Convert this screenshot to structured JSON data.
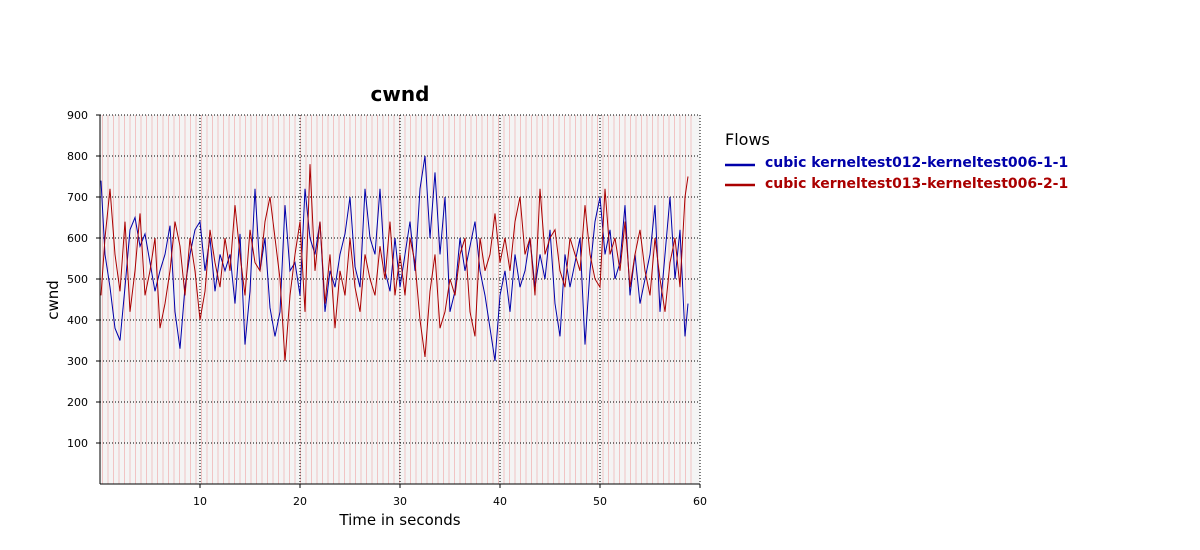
{
  "chart_data": {
    "type": "line",
    "title": "cwnd",
    "xlabel": "Time in seconds",
    "ylabel": "cwnd",
    "xlim": [
      0,
      60
    ],
    "ylim": [
      0,
      900
    ],
    "xticks": [
      10,
      20,
      30,
      40,
      50,
      60
    ],
    "yticks": [
      100,
      200,
      300,
      400,
      500,
      600,
      700,
      800,
      900
    ],
    "grid": true,
    "legend": {
      "title": "Flows",
      "position": "right"
    },
    "series": [
      {
        "name": "cubic kerneltest012-kerneltest006-1-1",
        "color": "#0000aa",
        "x": [
          0.1,
          0.5,
          1,
          1.5,
          2,
          2.5,
          3,
          3.5,
          4,
          4.5,
          5,
          5.5,
          6,
          6.5,
          7,
          7.5,
          8,
          8.5,
          9,
          9.5,
          10,
          10.5,
          11,
          11.5,
          12,
          12.5,
          13,
          13.5,
          14,
          14.5,
          15,
          15.5,
          16,
          16.5,
          17,
          17.5,
          18,
          18.5,
          19,
          19.5,
          20,
          20.5,
          21,
          21.5,
          22,
          22.5,
          23,
          23.5,
          24,
          24.5,
          25,
          25.5,
          26,
          26.5,
          27,
          27.5,
          28,
          28.5,
          29,
          29.5,
          30,
          30.5,
          31,
          31.5,
          32,
          32.5,
          33,
          33.5,
          34,
          34.5,
          35,
          35.5,
          36,
          36.5,
          37,
          37.5,
          38,
          38.5,
          39,
          39.5,
          40,
          40.5,
          41,
          41.5,
          42,
          42.5,
          43,
          43.5,
          44,
          44.5,
          45,
          45.5,
          46,
          46.5,
          47,
          47.5,
          48,
          48.5,
          49,
          49.5,
          50,
          50.5,
          51,
          51.5,
          52,
          52.5,
          53,
          53.5,
          54,
          54.5,
          55,
          55.5,
          56,
          56.5,
          57,
          57.5,
          58,
          58.5,
          58.8
        ],
        "values": [
          740,
          560,
          480,
          380,
          350,
          480,
          620,
          650,
          580,
          610,
          540,
          470,
          520,
          560,
          630,
          420,
          330,
          480,
          560,
          620,
          640,
          520,
          600,
          470,
          560,
          520,
          560,
          440,
          610,
          340,
          470,
          720,
          520,
          600,
          430,
          360,
          420,
          680,
          520,
          540,
          460,
          720,
          600,
          560,
          640,
          420,
          520,
          480,
          560,
          610,
          700,
          530,
          480,
          720,
          600,
          560,
          720,
          520,
          470,
          600,
          480,
          560,
          640,
          520,
          720,
          800,
          600,
          760,
          560,
          700,
          420,
          470,
          600,
          520,
          580,
          640,
          520,
          460,
          380,
          300,
          460,
          520,
          420,
          560,
          480,
          520,
          600,
          480,
          560,
          500,
          620,
          440,
          360,
          560,
          480,
          540,
          600,
          340,
          520,
          640,
          700,
          560,
          620,
          500,
          540,
          680,
          460,
          560,
          440,
          500,
          560,
          680,
          420,
          560,
          700,
          500,
          620,
          360,
          440
        ]
      },
      {
        "name": "cubic kerneltest013-kerneltest006-2-1",
        "color": "#aa0000",
        "x": [
          0.1,
          0.5,
          1,
          1.5,
          2,
          2.5,
          3,
          3.5,
          4,
          4.5,
          5,
          5.5,
          6,
          6.5,
          7,
          7.5,
          8,
          8.5,
          9,
          9.5,
          10,
          10.5,
          11,
          11.5,
          12,
          12.5,
          13,
          13.5,
          14,
          14.5,
          15,
          15.5,
          16,
          16.5,
          17,
          17.5,
          18,
          18.5,
          19,
          19.5,
          20,
          20.5,
          21,
          21.5,
          22,
          22.5,
          23,
          23.5,
          24,
          24.5,
          25,
          25.5,
          26,
          26.5,
          27,
          27.5,
          28,
          28.5,
          29,
          29.5,
          30,
          30.5,
          31,
          31.5,
          32,
          32.5,
          33,
          33.5,
          34,
          34.5,
          35,
          35.5,
          36,
          36.5,
          37,
          37.5,
          38,
          38.5,
          39,
          39.5,
          40,
          40.5,
          41,
          41.5,
          42,
          42.5,
          43,
          43.5,
          44,
          44.5,
          45,
          45.5,
          46,
          46.5,
          47,
          47.5,
          48,
          48.5,
          49,
          49.5,
          50,
          50.5,
          51,
          51.5,
          52,
          52.5,
          53,
          53.5,
          54,
          54.5,
          55,
          55.5,
          56,
          56.5,
          57,
          57.5,
          58,
          58.5,
          58.8
        ],
        "values": [
          460,
          600,
          720,
          560,
          470,
          640,
          420,
          520,
          660,
          460,
          520,
          600,
          380,
          440,
          520,
          640,
          580,
          460,
          600,
          520,
          400,
          470,
          620,
          540,
          480,
          600,
          520,
          680,
          560,
          460,
          620,
          540,
          520,
          640,
          700,
          600,
          500,
          300,
          460,
          560,
          640,
          420,
          780,
          520,
          640,
          440,
          560,
          380,
          520,
          460,
          600,
          480,
          420,
          560,
          500,
          460,
          580,
          500,
          640,
          460,
          560,
          460,
          600,
          540,
          400,
          310,
          470,
          560,
          380,
          420,
          500,
          460,
          560,
          600,
          420,
          360,
          600,
          520,
          560,
          660,
          540,
          600,
          520,
          640,
          700,
          560,
          600,
          460,
          720,
          560,
          600,
          620,
          520,
          480,
          600,
          560,
          520,
          680,
          560,
          500,
          480,
          720,
          560,
          600,
          520,
          640,
          480,
          560,
          620,
          520,
          460,
          600,
          500,
          420,
          540,
          600,
          480,
          700,
          750
        ]
      }
    ]
  }
}
